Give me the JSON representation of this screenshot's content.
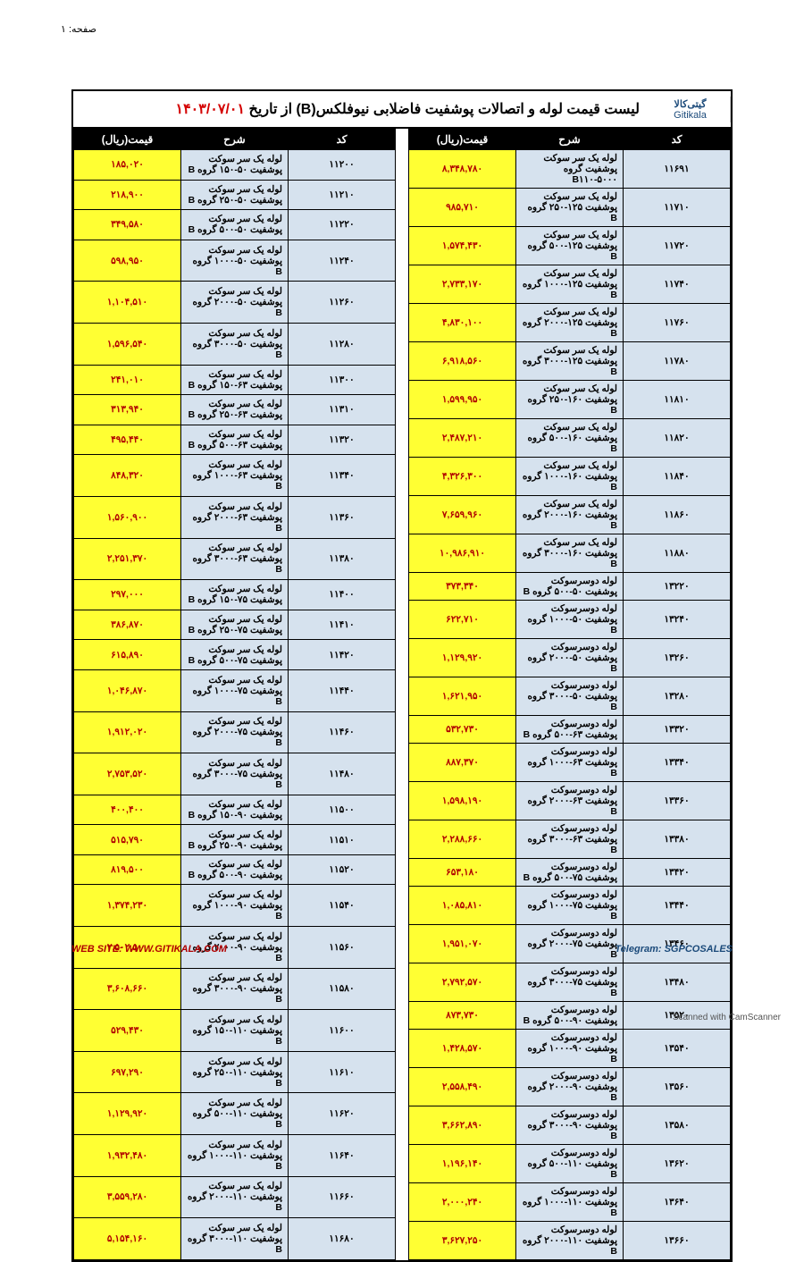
{
  "page_label": "صفحه: ۱",
  "title_prefix": "لیست قیمت لوله و اتصالات پوشفیت فاضلابی نیوفلکس(B) از تاریخ ",
  "title_date": "۱۴۰۳/۰۷/۰۱",
  "logo_fa": "گیتی‌کالا",
  "logo_en": "Gitikala",
  "headers": {
    "code": "کد",
    "desc": "شرح",
    "price": "قیمت(ریال)"
  },
  "footer_left": "WEB SITE: WWW.GITIKALA.COM",
  "footer_right": "Telegram: SGPCOSALES",
  "scan_note": "Scanned with CamScanner",
  "colors": {
    "header_bg": "#000000",
    "header_fg": "#ffffff",
    "code_bg": "#d6e2ee",
    "desc_bg": "#d6e2ee",
    "price_bg": "#ffff33",
    "price_fg": "#b00000",
    "title_date_fg": "#d40000",
    "border": "#000000"
  },
  "right_table": [
    {
      "code": "۱۱۲۰۰",
      "desc": "لوله یک سر سوکت پوشفیت ۵۰-۱۵۰ گروه B",
      "price": "۱۸۵,۰۲۰"
    },
    {
      "code": "۱۱۲۱۰",
      "desc": "لوله یک سر سوکت پوشفیت ۵۰-۲۵۰ گروه B",
      "price": "۲۱۸,۹۰۰"
    },
    {
      "code": "۱۱۲۲۰",
      "desc": "لوله یک سر سوکت پوشفیت ۵۰-۵۰۰ گروه B",
      "price": "۳۴۹,۵۸۰"
    },
    {
      "code": "۱۱۲۴۰",
      "desc": "لوله یک سر سوکت پوشفیت ۵۰-۱۰۰۰ گروه B",
      "price": "۵۹۸,۹۵۰"
    },
    {
      "code": "۱۱۲۶۰",
      "desc": "لوله یک سر سوکت پوشفیت ۵۰-۲۰۰۰ گروه B",
      "price": "۱,۱۰۴,۵۱۰"
    },
    {
      "code": "۱۱۲۸۰",
      "desc": "لوله یک سر سوکت پوشفیت ۵۰-۳۰۰۰ گروه B",
      "price": "۱,۵۹۶,۵۴۰"
    },
    {
      "code": "۱۱۳۰۰",
      "desc": "لوله یک سر سوکت پوشفیت ۶۳-۱۵۰ گروه B",
      "price": "۲۴۱,۰۱۰"
    },
    {
      "code": "۱۱۳۱۰",
      "desc": "لوله یک سر سوکت پوشفیت ۶۳-۲۵۰ گروه B",
      "price": "۳۱۳,۹۴۰"
    },
    {
      "code": "۱۱۳۲۰",
      "desc": "لوله یک سر سوکت پوشفیت ۶۳-۵۰۰ گروه B",
      "price": "۴۹۵,۴۴۰"
    },
    {
      "code": "۱۱۳۴۰",
      "desc": "لوله یک سر سوکت پوشفیت ۶۳-۱۰۰۰ گروه B",
      "price": "۸۴۸,۳۲۰"
    },
    {
      "code": "۱۱۳۶۰",
      "desc": "لوله یک سر سوکت پوشفیت ۶۳-۲۰۰۰ گروه B",
      "price": "۱,۵۶۰,۹۰۰"
    },
    {
      "code": "۱۱۳۸۰",
      "desc": "لوله یک سر سوکت پوشفیت ۶۳-۳۰۰۰ گروه B",
      "price": "۲,۲۵۱,۳۷۰"
    },
    {
      "code": "۱۱۴۰۰",
      "desc": "لوله یک سر سوکت پوشفیت ۷۵-۱۵۰ گروه B",
      "price": "۲۹۷,۰۰۰"
    },
    {
      "code": "۱۱۴۱۰",
      "desc": "لوله یک سر سوکت پوشفیت ۷۵-۲۵۰ گروه B",
      "price": "۳۸۶,۸۷۰"
    },
    {
      "code": "۱۱۴۲۰",
      "desc": "لوله یک سر سوکت پوشفیت ۷۵-۵۰۰ گروه B",
      "price": "۶۱۵,۸۹۰"
    },
    {
      "code": "۱۱۴۴۰",
      "desc": "لوله یک سر سوکت پوشفیت ۷۵-۱۰۰۰ گروه B",
      "price": "۱,۰۴۶,۸۷۰"
    },
    {
      "code": "۱۱۴۶۰",
      "desc": "لوله یک سر سوکت پوشفیت ۷۵-۲۰۰۰ گروه B",
      "price": "۱,۹۱۲,۰۲۰"
    },
    {
      "code": "۱۱۴۸۰",
      "desc": "لوله یک سر سوکت پوشفیت ۷۵-۳۰۰۰ گروه B",
      "price": "۲,۷۵۳,۵۲۰"
    },
    {
      "code": "۱۱۵۰۰",
      "desc": "لوله یک سر سوکت پوشفیت ۹۰-۱۵۰ گروه B",
      "price": "۴۰۰,۴۰۰"
    },
    {
      "code": "۱۱۵۱۰",
      "desc": "لوله یک سر سوکت پوشفیت ۹۰-۲۵۰ گروه B",
      "price": "۵۱۵,۷۹۰"
    },
    {
      "code": "۱۱۵۲۰",
      "desc": "لوله یک سر سوکت پوشفیت ۹۰-۵۰۰ گروه B",
      "price": "۸۱۹,۵۰۰"
    },
    {
      "code": "۱۱۵۴۰",
      "desc": "لوله یک سر سوکت پوشفیت ۹۰-۱۰۰۰ گروه B",
      "price": "۱,۳۷۴,۲۳۰"
    },
    {
      "code": "۱۱۵۶۰",
      "desc": "لوله یک سر سوکت پوشفیت ۹۰-۲۰۰۰ گروه B",
      "price": "۲,۵۰۲,۵۰۰"
    },
    {
      "code": "۱۱۵۸۰",
      "desc": "لوله یک سر سوکت پوشفیت ۹۰-۳۰۰۰ گروه B",
      "price": "۳,۶۰۸,۶۶۰"
    },
    {
      "code": "۱۱۶۰۰",
      "desc": "لوله یک سر سوکت پوشفیت ۱۱۰-۱۵۰ گروه B",
      "price": "۵۲۹,۴۳۰"
    },
    {
      "code": "۱۱۶۱۰",
      "desc": "لوله یک سر سوکت پوشفیت ۱۱۰-۲۵۰ گروه B",
      "price": "۶۹۷,۲۹۰"
    },
    {
      "code": "۱۱۶۲۰",
      "desc": "لوله یک سر سوکت پوشفیت ۱۱۰-۵۰۰ گروه B",
      "price": "۱,۱۲۹,۹۲۰"
    },
    {
      "code": "۱۱۶۴۰",
      "desc": "لوله یک سر سوکت پوشفیت ۱۱۰-۱۰۰۰ گروه B",
      "price": "۱,۹۳۲,۴۸۰"
    },
    {
      "code": "۱۱۶۶۰",
      "desc": "لوله یک سر سوکت پوشفیت ۱۱۰-۲۰۰۰ گروه B",
      "price": "۳,۵۵۹,۲۸۰"
    },
    {
      "code": "۱۱۶۸۰",
      "desc": "لوله یک سر سوکت پوشفیت ۱۱۰-۳۰۰۰ گروه B",
      "price": "۵,۱۵۴,۱۶۰"
    }
  ],
  "left_table": [
    {
      "code": "۱۱۶۹۱",
      "desc": "لوله یک سر سوکت پوشفیت گروه B۱۱۰-۵۰۰۰",
      "price": "۸,۳۴۸,۷۸۰"
    },
    {
      "code": "۱۱۷۱۰",
      "desc": "لوله یک سر سوکت پوشفیت ۱۲۵-۲۵۰ گروه B",
      "price": "۹۸۵,۷۱۰"
    },
    {
      "code": "۱۱۷۲۰",
      "desc": "لوله یک سر سوکت پوشفیت ۱۲۵-۵۰۰ گروه B",
      "price": "۱,۵۷۴,۴۳۰"
    },
    {
      "code": "۱۱۷۴۰",
      "desc": "لوله یک سر سوکت پوشفیت ۱۲۵-۱۰۰۰ گروه B",
      "price": "۲,۷۳۳,۱۷۰"
    },
    {
      "code": "۱۱۷۶۰",
      "desc": "لوله یک سر سوکت پوشفیت ۱۲۵-۲۰۰۰ گروه B",
      "price": "۴,۸۳۰,۱۰۰"
    },
    {
      "code": "۱۱۷۸۰",
      "desc": "لوله یک سر سوکت پوشفیت ۱۲۵-۳۰۰۰ گروه B",
      "price": "۶,۹۱۸,۵۶۰"
    },
    {
      "code": "۱۱۸۱۰",
      "desc": "لوله یک سر سوکت پوشفیت ۱۶۰-۲۵۰ گروه B",
      "price": "۱,۵۹۹,۹۵۰"
    },
    {
      "code": "۱۱۸۲۰",
      "desc": "لوله یک سر سوکت پوشفیت ۱۶۰-۵۰۰ گروه B",
      "price": "۲,۴۸۷,۲۱۰"
    },
    {
      "code": "۱۱۸۴۰",
      "desc": "لوله یک سر سوکت پوشفیت ۱۶۰-۱۰۰۰ گروه B",
      "price": "۴,۳۲۶,۳۰۰"
    },
    {
      "code": "۱۱۸۶۰",
      "desc": "لوله یک سر سوکت پوشفیت ۱۶۰-۲۰۰۰ گروه B",
      "price": "۷,۶۵۹,۹۶۰"
    },
    {
      "code": "۱۱۸۸۰",
      "desc": "لوله یک سر سوکت پوشفیت ۱۶۰-۳۰۰۰ گروه B",
      "price": "۱۰,۹۸۶,۹۱۰"
    },
    {
      "code": "۱۳۲۲۰",
      "desc": "لوله دوسرسوکت پوشفیت ۵۰-۵۰۰ گروه B",
      "price": "۳۷۳,۳۴۰"
    },
    {
      "code": "۱۳۲۴۰",
      "desc": "لوله دوسرسوکت پوشفیت ۵۰-۱۰۰۰ گروه B",
      "price": "۶۲۲,۷۱۰"
    },
    {
      "code": "۱۳۲۶۰",
      "desc": "لوله دوسرسوکت پوشفیت ۵۰-۲۰۰۰ گروه B",
      "price": "۱,۱۲۹,۹۲۰"
    },
    {
      "code": "۱۳۲۸۰",
      "desc": "لوله دوسرسوکت پوشفیت ۵۰-۳۰۰۰ گروه B",
      "price": "۱,۶۲۱,۹۵۰"
    },
    {
      "code": "۱۳۳۲۰",
      "desc": "لوله دوسرسوکت پوشفیت ۶۳-۵۰۰ گروه B",
      "price": "۵۳۲,۷۳۰"
    },
    {
      "code": "۱۳۳۴۰",
      "desc": "لوله دوسرسوکت پوشفیت ۶۳-۱۰۰۰ گروه B",
      "price": "۸۸۷,۳۷۰"
    },
    {
      "code": "۱۳۳۶۰",
      "desc": "لوله دوسرسوکت پوشفیت ۶۳-۲۰۰۰ گروه B",
      "price": "۱,۵۹۸,۱۹۰"
    },
    {
      "code": "۱۳۳۸۰",
      "desc": "لوله دوسرسوکت پوشفیت ۶۳-۳۰۰۰ گروه B",
      "price": "۲,۲۸۸,۶۶۰"
    },
    {
      "code": "۱۳۴۲۰",
      "desc": "لوله دوسرسوکت پوشفیت ۷۵-۵۰۰ گروه B",
      "price": "۶۵۳,۱۸۰"
    },
    {
      "code": "۱۳۴۴۰",
      "desc": "لوله دوسرسوکت پوشفیت ۷۵-۱۰۰۰ گروه B",
      "price": "۱,۰۸۵,۸۱۰"
    },
    {
      "code": "۱۳۴۶۰",
      "desc": "لوله دوسرسوکت پوشفیت ۷۵-۲۰۰۰ گروه B",
      "price": "۱,۹۵۱,۰۷۰"
    },
    {
      "code": "۱۳۴۸۰",
      "desc": "لوله دوسرسوکت پوشفیت ۷۵-۳۰۰۰ گروه B",
      "price": "۲,۷۹۲,۵۷۰"
    },
    {
      "code": "۱۳۵۲۰",
      "desc": "لوله دوسرسوکت پوشفیت ۹۰-۵۰۰ گروه B",
      "price": "۸۷۳,۷۳۰"
    },
    {
      "code": "۱۳۵۴۰",
      "desc": "لوله دوسرسوکت پوشفیت ۹۰-۱۰۰۰ گروه B",
      "price": "۱,۴۲۸,۵۷۰"
    },
    {
      "code": "۱۳۵۶۰",
      "desc": "لوله دوسرسوکت پوشفیت ۹۰-۲۰۰۰ گروه B",
      "price": "۲,۵۵۸,۴۹۰"
    },
    {
      "code": "۱۳۵۸۰",
      "desc": "لوله دوسرسوکت پوشفیت ۹۰-۳۰۰۰ گروه B",
      "price": "۳,۶۶۲,۸۹۰"
    },
    {
      "code": "۱۳۶۲۰",
      "desc": "لوله دوسرسوکت پوشفیت ۱۱۰-۵۰۰ گروه B",
      "price": "۱,۱۹۶,۱۴۰"
    },
    {
      "code": "۱۳۶۴۰",
      "desc": "لوله دوسرسوکت پوشفیت ۱۱۰-۱۰۰۰ گروه B",
      "price": "۲,۰۰۰,۲۴۰"
    },
    {
      "code": "۱۳۶۶۰",
      "desc": "لوله دوسرسوکت پوشفیت ۱۱۰-۲۰۰۰ گروه B",
      "price": "۳,۶۲۷,۲۵۰"
    }
  ]
}
